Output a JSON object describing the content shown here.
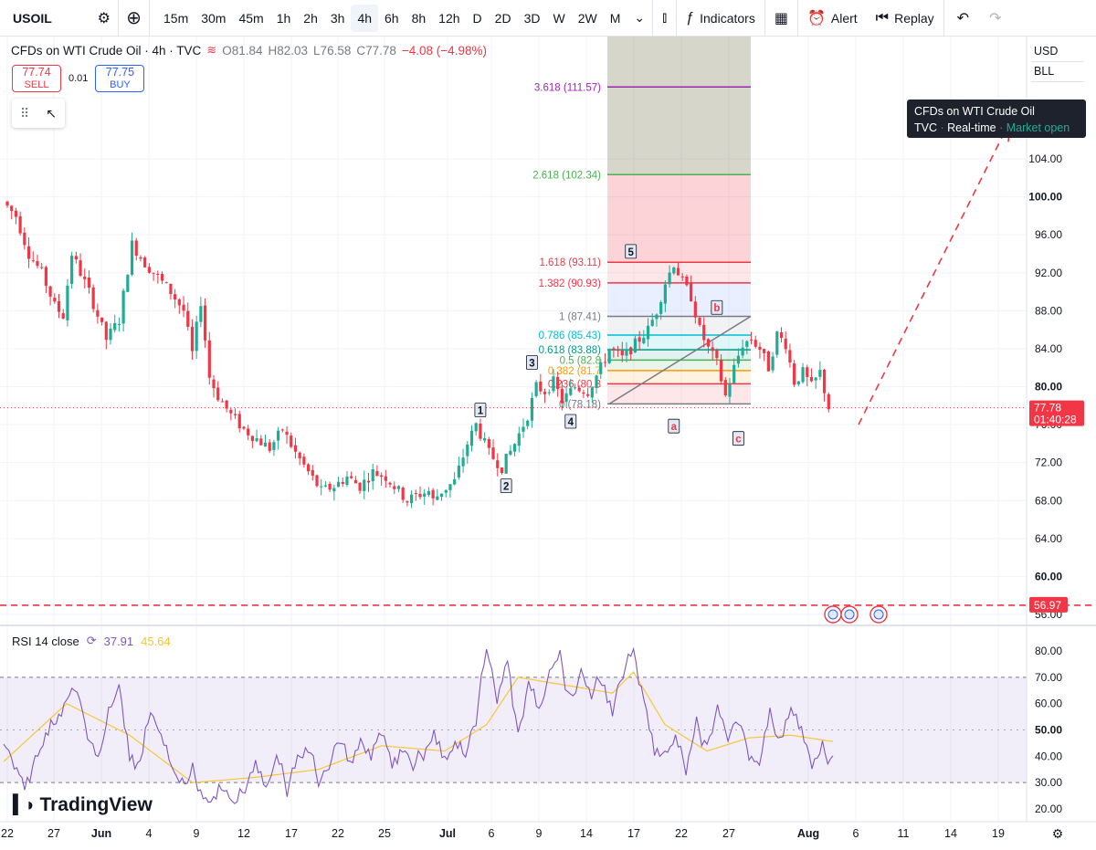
{
  "toolbar": {
    "symbol": "USOIL",
    "timeframes": [
      "15m",
      "30m",
      "45m",
      "1h",
      "2h",
      "3h",
      "4h",
      "6h",
      "8h",
      "12h",
      "D",
      "2D",
      "3D",
      "W",
      "2W",
      "M"
    ],
    "active_timeframe": "4h",
    "indicators_label": "Indicators",
    "alert_label": "Alert",
    "replay_label": "Replay"
  },
  "legend": {
    "title": "CFDs on WTI Crude Oil · 4h · TVC",
    "open": "O81.84",
    "high": "H82.03",
    "low": "L76.58",
    "close": "C77.78",
    "change": "−4.08 (−4.98%)"
  },
  "trade": {
    "sell_price": "77.74",
    "sell_label": "SELL",
    "spread": "0.01",
    "buy_price": "77.75",
    "buy_label": "BUY"
  },
  "price_scale": {
    "currency": "USD",
    "unit": "BLL"
  },
  "tooltip": {
    "title": "CFDs on WTI Crude Oil",
    "source": "TVC",
    "type": "Real-time",
    "status": "Market open"
  },
  "rsi_legend": {
    "name": "RSI 14 close",
    "rsi": "37.91",
    "ma": "45.64"
  },
  "brand": "TradingView",
  "colors": {
    "up": "#22ab94",
    "down": "#f23645",
    "rsi": "#7e57c2",
    "rsi_ma": "#f7c637",
    "accent": "#2962ff"
  },
  "chart_data": [
    {
      "type": "candlestick",
      "title": "CFDs on WTI Crude Oil · 4h · TVC",
      "y_ticks": [
        56,
        60,
        64,
        68,
        72,
        76,
        80,
        84,
        88,
        92,
        96,
        100,
        104
      ],
      "y_tick_labels": [
        "56.00",
        "60.00",
        "64.00",
        "68.00",
        "72.00",
        "76.00",
        "80.00",
        "84.00",
        "88.00",
        "92.00",
        "96.00",
        "100.00",
        "104.00"
      ],
      "ylim": [
        55,
        113
      ],
      "x_ticks": [
        "22",
        "27",
        "Jun",
        "4",
        "9",
        "12",
        "17",
        "22",
        "25",
        "Jul",
        "6",
        "9",
        "14",
        "17",
        "22",
        "27",
        "Aug",
        "6",
        "11",
        "14",
        "19"
      ],
      "price_path": [
        [
          0,
          99.5
        ],
        [
          3,
          98
        ],
        [
          6,
          94
        ],
        [
          9,
          92
        ],
        [
          12,
          88.5
        ],
        [
          14,
          87.5
        ],
        [
          16,
          94
        ],
        [
          18,
          92
        ],
        [
          20,
          90
        ],
        [
          24,
          85
        ],
        [
          27,
          87
        ],
        [
          30,
          95
        ],
        [
          33,
          93
        ],
        [
          36,
          91.5
        ],
        [
          39,
          90
        ],
        [
          42,
          88
        ],
        [
          44,
          83.5
        ],
        [
          46,
          89
        ],
        [
          48,
          81
        ],
        [
          50,
          79
        ],
        [
          53,
          77
        ],
        [
          56,
          75.5
        ],
        [
          59,
          74.5
        ],
        [
          62,
          73.5
        ],
        [
          65,
          75.5
        ],
        [
          68,
          73
        ],
        [
          71,
          71
        ],
        [
          74,
          69
        ],
        [
          77,
          69.5
        ],
        [
          80,
          70.5
        ],
        [
          83,
          69.5
        ],
        [
          86,
          71
        ],
        [
          89,
          70.5
        ],
        [
          92,
          69
        ],
        [
          94,
          68
        ],
        [
          96,
          68.5
        ],
        [
          99,
          69
        ],
        [
          100,
          68
        ],
        [
          102,
          69
        ],
        [
          105,
          70
        ],
        [
          108,
          74
        ],
        [
          110,
          76
        ],
        [
          113,
          73
        ],
        [
          116,
          71.5
        ],
        [
          119,
          74
        ],
        [
          122,
          77
        ],
        [
          124,
          80
        ],
        [
          126,
          79.5
        ],
        [
          128,
          80.5
        ],
        [
          130,
          78.5
        ],
        [
          133,
          80
        ],
        [
          136,
          79.5
        ],
        [
          139,
          82
        ],
        [
          141,
          84
        ],
        [
          144,
          83
        ],
        [
          147,
          84.5
        ],
        [
          150,
          86
        ],
        [
          152,
          88
        ],
        [
          154,
          91
        ],
        [
          156,
          93
        ],
        [
          158,
          91
        ],
        [
          160,
          89.5
        ],
        [
          162,
          86
        ],
        [
          164,
          84
        ],
        [
          166,
          82.5
        ],
        [
          168,
          79
        ],
        [
          170,
          82
        ],
        [
          172,
          84.5
        ],
        [
          174,
          85
        ],
        [
          176,
          84
        ],
        [
          178,
          82
        ],
        [
          180,
          85.5
        ],
        [
          182,
          84.5
        ],
        [
          184,
          80.5
        ],
        [
          186,
          81.5
        ],
        [
          188,
          80
        ],
        [
          190,
          81.5
        ],
        [
          192,
          77.8
        ]
      ],
      "fibonacci": [
        {
          "ratio": "0",
          "price": 78.18,
          "color": "#787b86"
        },
        {
          "ratio": "0.236",
          "price": 80.3,
          "color": "#f23645"
        },
        {
          "ratio": "0.382",
          "price": 81.7,
          "color": "#ff9800"
        },
        {
          "ratio": "0.5",
          "price": 82.8,
          "color": "#4caf50"
        },
        {
          "ratio": "0.618",
          "price": 83.88,
          "color": "#089981"
        },
        {
          "ratio": "0.786",
          "price": 85.43,
          "color": "#00bcd4"
        },
        {
          "ratio": "1",
          "price": 87.41,
          "color": "#787b86"
        },
        {
          "ratio": "1.382",
          "price": 90.93,
          "color": "#f23645"
        },
        {
          "ratio": "1.618",
          "price": 93.11,
          "color": "#f23645"
        },
        {
          "ratio": "2.618",
          "price": 102.34,
          "color": "#4caf50"
        },
        {
          "ratio": "3.618",
          "price": 111.57,
          "color": "#9c27b0"
        }
      ],
      "fib_labels": [
        "0 (78.18)",
        "0.236 (80.3",
        "0.382 (81.7",
        "0.5 (82.8",
        "0.618 (83.88)",
        "0.786 (85.43)",
        "1 (87.41)",
        "1.382 (90.93)",
        "1.618 (93.11)",
        "2.618 (102.34)",
        "3.618 (111.57)"
      ],
      "waves": [
        {
          "label": "1",
          "price": 77.5,
          "idx": 110
        },
        {
          "label": "2",
          "price": 69.5,
          "idx": 116
        },
        {
          "label": "3",
          "price": 82.5,
          "idx": 122
        },
        {
          "label": "4",
          "price": 76.3,
          "idx": 131
        },
        {
          "label": "5",
          "price": 94.2,
          "idx": 145
        },
        {
          "label": "a",
          "price": 75.8,
          "idx": 155
        },
        {
          "label": "b",
          "price": 88.3,
          "idx": 165
        },
        {
          "label": "c",
          "price": 74.5,
          "idx": 170
        }
      ],
      "current_price": {
        "value": "77.78",
        "countdown": "01:40:28"
      },
      "support_line": {
        "value": "56.97"
      },
      "projection": [
        [
          76,
          108
        ]
      ]
    },
    {
      "type": "line",
      "name": "RSI 14 close",
      "y_ticks": [
        20,
        30,
        40,
        50,
        60,
        70,
        80
      ],
      "y_tick_labels": [
        "20.00",
        "30.00",
        "40.00",
        "50.00",
        "60.00",
        "70.00",
        "80.00"
      ],
      "ylim": [
        17,
        85
      ],
      "band": [
        30,
        70
      ],
      "midline": 50,
      "rsi_path": [
        [
          0,
          45
        ],
        [
          4,
          30
        ],
        [
          8,
          46
        ],
        [
          12,
          62
        ],
        [
          14,
          66
        ],
        [
          16,
          48
        ],
        [
          18,
          38
        ],
        [
          20,
          56
        ],
        [
          22,
          67
        ],
        [
          24,
          42
        ],
        [
          26,
          36
        ],
        [
          28,
          58
        ],
        [
          30,
          47
        ],
        [
          32,
          36
        ],
        [
          34,
          28
        ],
        [
          36,
          34
        ],
        [
          38,
          25
        ],
        [
          40,
          22
        ],
        [
          42,
          29
        ],
        [
          44,
          21
        ],
        [
          46,
          28
        ],
        [
          48,
          36
        ],
        [
          50,
          27
        ],
        [
          52,
          40
        ],
        [
          54,
          28
        ],
        [
          56,
          38
        ],
        [
          58,
          45
        ],
        [
          60,
          30
        ],
        [
          62,
          36
        ],
        [
          64,
          48
        ],
        [
          66,
          35
        ],
        [
          68,
          45
        ],
        [
          70,
          42
        ],
        [
          72,
          51
        ],
        [
          74,
          38
        ],
        [
          76,
          44
        ],
        [
          78,
          36
        ],
        [
          80,
          42
        ],
        [
          82,
          47
        ],
        [
          84,
          37
        ],
        [
          86,
          44
        ],
        [
          88,
          40
        ],
        [
          90,
          55
        ],
        [
          92,
          81
        ],
        [
          94,
          62
        ],
        [
          96,
          78
        ],
        [
          98,
          48
        ],
        [
          100,
          68
        ],
        [
          102,
          56
        ],
        [
          104,
          72
        ],
        [
          106,
          78
        ],
        [
          108,
          60
        ],
        [
          110,
          72
        ],
        [
          112,
          64
        ],
        [
          114,
          70
        ],
        [
          116,
          58
        ],
        [
          118,
          72
        ],
        [
          120,
          80
        ],
        [
          122,
          62
        ],
        [
          124,
          44
        ],
        [
          126,
          40
        ],
        [
          128,
          46
        ],
        [
          130,
          36
        ],
        [
          132,
          52
        ],
        [
          134,
          44
        ],
        [
          136,
          58
        ],
        [
          138,
          47
        ],
        [
          140,
          55
        ],
        [
          142,
          41
        ],
        [
          144,
          37
        ],
        [
          146,
          56
        ],
        [
          148,
          44
        ],
        [
          150,
          58
        ],
        [
          152,
          48
        ],
        [
          154,
          38
        ],
        [
          156,
          42
        ],
        [
          158,
          37.9
        ]
      ],
      "ma_path": [
        [
          0,
          38
        ],
        [
          12,
          60
        ],
        [
          24,
          48
        ],
        [
          36,
          30
        ],
        [
          48,
          32
        ],
        [
          60,
          35
        ],
        [
          72,
          44
        ],
        [
          84,
          42
        ],
        [
          92,
          52
        ],
        [
          98,
          70
        ],
        [
          104,
          68
        ],
        [
          110,
          66
        ],
        [
          116,
          64
        ],
        [
          120,
          72
        ],
        [
          126,
          52
        ],
        [
          134,
          42
        ],
        [
          142,
          47
        ],
        [
          150,
          48
        ],
        [
          158,
          45.6
        ]
      ]
    }
  ]
}
